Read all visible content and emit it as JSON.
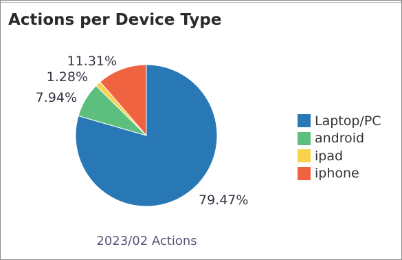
{
  "chart_data": {
    "type": "pie",
    "title": "Actions per Device Type",
    "caption": "2023/02 Actions",
    "start_angle": "top",
    "direction": "clockwise",
    "legend_position": "right",
    "slices": [
      {
        "label": "Laptop/PC",
        "value": 79.47,
        "value_label": "79.47%",
        "color": "#2878b5"
      },
      {
        "label": "android",
        "value": 7.94,
        "value_label": "7.94%",
        "color": "#5cbf7d"
      },
      {
        "label": "ipad",
        "value": 1.28,
        "value_label": "1.28%",
        "color": "#f8d24b"
      },
      {
        "label": "iphone",
        "value": 11.31,
        "value_label": "11.31%",
        "color": "#ef6340"
      }
    ]
  }
}
